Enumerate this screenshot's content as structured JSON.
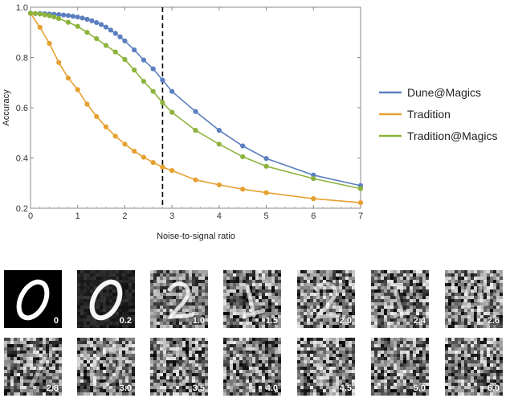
{
  "chart_data": {
    "type": "line",
    "xlabel": "Noise-to-signal ratio",
    "ylabel": "Accuracy",
    "xlim": [
      0,
      7
    ],
    "ylim": [
      0.2,
      1.0
    ],
    "x_ticks": [
      "0",
      "1",
      "2",
      "3",
      "4",
      "5",
      "6",
      "7"
    ],
    "y_ticks": [
      "0.2",
      "0.4",
      "0.6",
      "0.8",
      "1.0"
    ],
    "legend_position": "right",
    "grid": false,
    "threshold_line": {
      "x": 2.8,
      "style": "dashed",
      "color": "#000000"
    },
    "series": [
      {
        "name": "Dune@Magics",
        "color": "#5b7fbf",
        "x": [
          0,
          0.1,
          0.2,
          0.3,
          0.4,
          0.5,
          0.6,
          0.7,
          0.8,
          0.9,
          1.0,
          1.1,
          1.2,
          1.3,
          1.4,
          1.5,
          1.6,
          1.7,
          1.8,
          1.9,
          2.0,
          2.2,
          2.4,
          2.6,
          2.8,
          3.0,
          3.5,
          4.0,
          4.5,
          5.0,
          6.0,
          7.0
        ],
        "values": [
          0.976,
          0.975,
          0.975,
          0.974,
          0.973,
          0.972,
          0.971,
          0.969,
          0.967,
          0.964,
          0.961,
          0.957,
          0.952,
          0.946,
          0.939,
          0.931,
          0.921,
          0.909,
          0.896,
          0.882,
          0.866,
          0.83,
          0.79,
          0.755,
          0.71,
          0.665,
          0.585,
          0.51,
          0.448,
          0.398,
          0.332,
          0.29
        ]
      },
      {
        "name": "Tradition",
        "color": "#e6a030",
        "x": [
          0,
          0.2,
          0.4,
          0.6,
          0.8,
          1.0,
          1.2,
          1.4,
          1.6,
          1.8,
          2.0,
          2.2,
          2.4,
          2.6,
          2.8,
          3.0,
          3.5,
          4.0,
          4.5,
          5.0,
          6.0,
          7.0
        ],
        "values": [
          0.976,
          0.92,
          0.856,
          0.78,
          0.718,
          0.672,
          0.614,
          0.565,
          0.524,
          0.487,
          0.455,
          0.427,
          0.403,
          0.382,
          0.364,
          0.35,
          0.313,
          0.293,
          0.276,
          0.262,
          0.238,
          0.222
        ]
      },
      {
        "name": "Tradition@Magics",
        "color": "#8db33c",
        "x": [
          0,
          0.1,
          0.2,
          0.3,
          0.4,
          0.5,
          0.6,
          0.8,
          1.0,
          1.2,
          1.4,
          1.6,
          1.8,
          2.0,
          2.2,
          2.4,
          2.6,
          2.8,
          3.0,
          3.5,
          4.0,
          4.5,
          5.0,
          6.0,
          7.0
        ],
        "values": [
          0.976,
          0.975,
          0.973,
          0.97,
          0.966,
          0.961,
          0.955,
          0.94,
          0.924,
          0.9,
          0.875,
          0.848,
          0.822,
          0.792,
          0.75,
          0.705,
          0.665,
          0.62,
          0.582,
          0.51,
          0.455,
          0.405,
          0.367,
          0.318,
          0.278
        ]
      }
    ]
  },
  "thumbnails": {
    "row1": [
      {
        "label": "0",
        "noise": 0
      },
      {
        "label": "0.2",
        "noise": 0.2
      },
      {
        "label": "1.0",
        "noise": 1.0
      },
      {
        "label": "1.5",
        "noise": 1.5
      },
      {
        "label": "2.0",
        "noise": 2.0
      },
      {
        "label": "2.4",
        "noise": 2.4
      },
      {
        "label": "2.6",
        "noise": 2.6
      }
    ],
    "row2": [
      {
        "label": "2.8",
        "noise": 2.8
      },
      {
        "label": "3.0",
        "noise": 3.0
      },
      {
        "label": "3.5",
        "noise": 3.5
      },
      {
        "label": "4.0",
        "noise": 4.0
      },
      {
        "label": "4.5",
        "noise": 4.5
      },
      {
        "label": "5.0",
        "noise": 5.0
      },
      {
        "label": "6.0",
        "noise": 6.0
      }
    ]
  }
}
